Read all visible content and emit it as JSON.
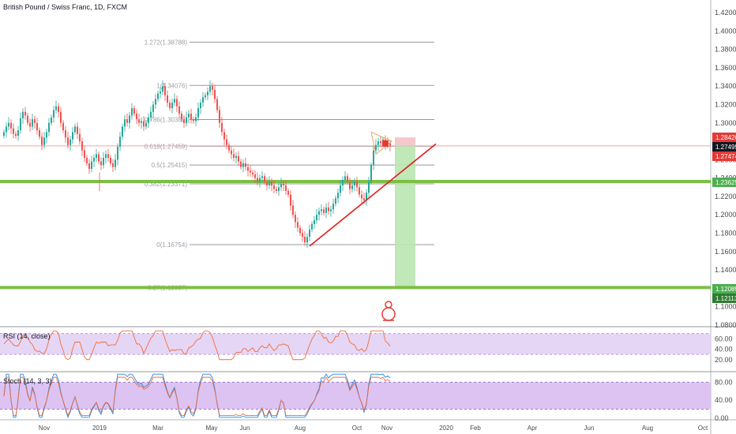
{
  "title": "British Pound / Swiss Franc, 1D, FXCM",
  "colors": {
    "up": "#26a69a",
    "down": "#ef5350",
    "fib": "#9598a1",
    "support": "#7bc043",
    "trend": "#e01b1b",
    "target_zone": "#b9e6b0",
    "stop_zone": "#f4c2c6",
    "rsi_line": "#ef6c3a",
    "rsi_band": "#e6d6f5",
    "stoch_band": "#dcc3f2",
    "stoch_k": "#1e88e5",
    "stoch_d": "#ef6c3a"
  },
  "price_axis": {
    "ticks": [
      "1.42000",
      "1.40000",
      "1.38000",
      "1.36000",
      "1.34000",
      "1.32000",
      "1.30000",
      "1.28000",
      "1.26000",
      "1.24000",
      "1.22000",
      "1.20000",
      "1.18000",
      "1.16000",
      "1.14000",
      "1.12000",
      "1.10000",
      "1.08000"
    ]
  },
  "price_tags": [
    {
      "text": "1.28426",
      "color": "#e53935"
    },
    {
      "text": "1.27499",
      "color": "#131722"
    },
    {
      "text": "1.27474",
      "color": "#e53935"
    },
    {
      "text": "1.23625",
      "color": "#4caf50"
    },
    {
      "text": "1.12089",
      "color": "#4caf50"
    },
    {
      "text": "1.12113",
      "color": "#2e7d32"
    }
  ],
  "fib_levels": [
    {
      "label": "1.272(1.38788)"
    },
    {
      "label": "1(1.34076)"
    },
    {
      "label": "0.786(1.30369)"
    },
    {
      "label": "0.618(1.27459)"
    },
    {
      "label": "0.5(1.25415)"
    },
    {
      "label": "0.382(1.23371)"
    },
    {
      "label": "0(1.16754)"
    },
    {
      "label": "-0.27(1.12097)"
    }
  ],
  "time_axis": {
    "labels": [
      "Nov",
      "2019",
      "Mar",
      "May",
      "Jun",
      "Aug",
      "Oct",
      "Nov",
      "2020",
      "Feb",
      "Apr",
      "Jun",
      "Aug",
      "Oct"
    ]
  },
  "rsi": {
    "label": "RSI (14, close)",
    "ticks": [
      "60.00",
      "40.00",
      "20.00"
    ]
  },
  "stoch": {
    "label": "Stoch (14, 3, 3)",
    "ticks": [
      "80.00",
      "40.00",
      "0.00"
    ]
  },
  "chart_data": {
    "type": "candlestick",
    "symbol": "GBPCHF",
    "interval": "1D",
    "ylim": [
      1.08,
      1.42
    ],
    "close_series": [
      1.29,
      1.296,
      1.3,
      1.294,
      1.288,
      1.286,
      1.292,
      1.305,
      1.312,
      1.308,
      1.3,
      1.296,
      1.304,
      1.3,
      1.292,
      1.285,
      1.276,
      1.284,
      1.29,
      1.3,
      1.306,
      1.314,
      1.318,
      1.312,
      1.3,
      1.292,
      1.284,
      1.276,
      1.282,
      1.29,
      1.296,
      1.288,
      1.28,
      1.27,
      1.262,
      1.256,
      1.25,
      1.258,
      1.262,
      1.266,
      1.258,
      1.254,
      1.262,
      1.266,
      1.262,
      1.256,
      1.252,
      1.26,
      1.274,
      1.285,
      1.296,
      1.304,
      1.3,
      1.308,
      1.316,
      1.31,
      1.304,
      1.3,
      1.302,
      1.296,
      1.3,
      1.306,
      1.312,
      1.32,
      1.326,
      1.332,
      1.334,
      1.34,
      1.33,
      1.322,
      1.316,
      1.322,
      1.326,
      1.318,
      1.31,
      1.304,
      1.3,
      1.306,
      1.31,
      1.304,
      1.302,
      1.306,
      1.316,
      1.322,
      1.328,
      1.33,
      1.334,
      1.34,
      1.336,
      1.326,
      1.314,
      1.3,
      1.29,
      1.282,
      1.276,
      1.27,
      1.266,
      1.262,
      1.264,
      1.258,
      1.252,
      1.256,
      1.252,
      1.248,
      1.246,
      1.244,
      1.24,
      1.236,
      1.24,
      1.242,
      1.236,
      1.232,
      1.236,
      1.232,
      1.228,
      1.226,
      1.23,
      1.234,
      1.232,
      1.226,
      1.222,
      1.21,
      1.2,
      1.192,
      1.186,
      1.18,
      1.176,
      1.17,
      1.176,
      1.184,
      1.19,
      1.194,
      1.2,
      1.204,
      1.206,
      1.202,
      1.208,
      1.204,
      1.206,
      1.212,
      1.218,
      1.224,
      1.232,
      1.238,
      1.242,
      1.236,
      1.228,
      1.232,
      1.236,
      1.23,
      1.222,
      1.218,
      1.216,
      1.224,
      1.236,
      1.254,
      1.27,
      1.276,
      1.28,
      1.278,
      1.282,
      1.276,
      1.278,
      1.275
    ],
    "fib_values": [
      1.38788,
      1.34076,
      1.30369,
      1.27459,
      1.25415,
      1.23371,
      1.16754,
      1.12097
    ],
    "support_levels": [
      1.23625,
      1.12089
    ],
    "current_price": 1.27499,
    "stop_level": 1.28426,
    "entry_level": 1.27474,
    "target_level": 1.12113
  }
}
